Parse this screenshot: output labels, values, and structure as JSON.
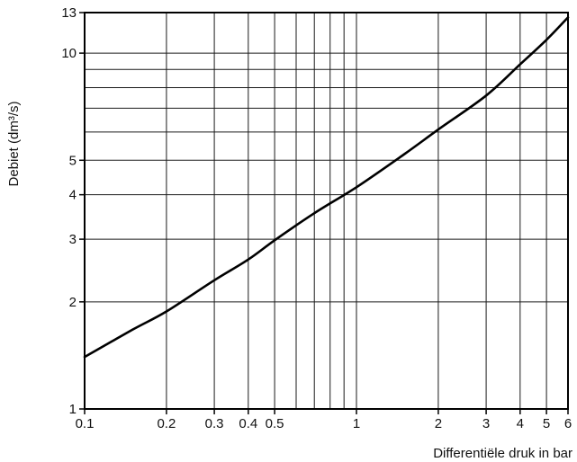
{
  "chart_data": {
    "type": "line",
    "xlabel": "Differentiële druk in bar",
    "ylabel": "Debiet (dm³/s)",
    "x_scale": "log",
    "y_scale": "log",
    "xlim": [
      0.1,
      6
    ],
    "ylim": [
      1,
      13
    ],
    "grid": true,
    "x_gridlines": [
      0.2,
      0.3,
      0.4,
      0.5,
      0.6,
      0.7,
      0.8,
      0.9,
      1,
      2,
      3,
      4,
      5
    ],
    "y_gridlines": [
      2,
      3,
      4,
      5,
      6,
      7,
      8,
      9,
      10
    ],
    "x_ticks": [
      {
        "value": 0.1,
        "label": "0.1"
      },
      {
        "value": 0.2,
        "label": "0.2"
      },
      {
        "value": 0.3,
        "label": "0.3"
      },
      {
        "value": 0.4,
        "label": "0.4"
      },
      {
        "value": 0.5,
        "label": "0.5"
      },
      {
        "value": 1,
        "label": "1"
      },
      {
        "value": 2,
        "label": "2"
      },
      {
        "value": 3,
        "label": "3"
      },
      {
        "value": 4,
        "label": "4"
      },
      {
        "value": 5,
        "label": "5"
      },
      {
        "value": 6,
        "label": "6"
      }
    ],
    "y_ticks": [
      {
        "value": 1,
        "label": "1"
      },
      {
        "value": 2,
        "label": "2"
      },
      {
        "value": 3,
        "label": "3"
      },
      {
        "value": 4,
        "label": "4"
      },
      {
        "value": 5,
        "label": "5"
      },
      {
        "value": 10,
        "label": "10"
      },
      {
        "value": 13,
        "label": "13"
      }
    ],
    "series": [
      {
        "color": "#000000",
        "x": [
          0.1,
          0.15,
          0.2,
          0.3,
          0.4,
          0.5,
          0.7,
          1,
          1.5,
          2,
          3,
          4,
          5,
          6
        ],
        "y": [
          1.4,
          1.67,
          1.88,
          2.3,
          2.63,
          2.98,
          3.55,
          4.2,
          5.2,
          6.1,
          7.6,
          9.3,
          10.9,
          12.6
        ]
      }
    ]
  }
}
